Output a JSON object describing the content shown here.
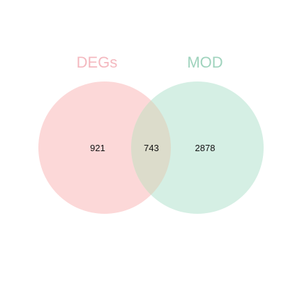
{
  "venn": {
    "sets": [
      {
        "name": "DEGs",
        "color": "#fcd8d8",
        "label_color": "#f4b8bf"
      },
      {
        "name": "MOD",
        "color": "#d5efe4",
        "label_color": "#9fd3bd"
      }
    ],
    "intersection_color": "#dcdccb",
    "counts": {
      "left_only": "921",
      "intersection": "743",
      "right_only": "2878"
    }
  }
}
